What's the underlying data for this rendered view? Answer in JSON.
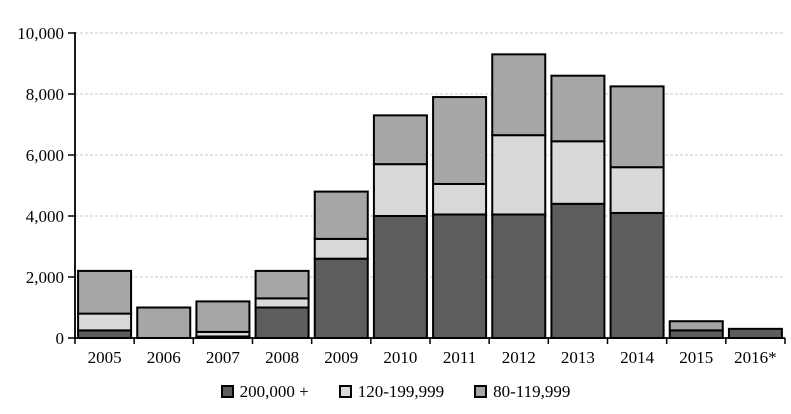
{
  "chart_data": {
    "type": "bar",
    "stacked": true,
    "title": "",
    "xlabel": "",
    "ylabel": "",
    "categories": [
      "2005",
      "2006",
      "2007",
      "2008",
      "2009",
      "2010",
      "2011",
      "2012",
      "2013",
      "2014",
      "2015",
      "2016*"
    ],
    "series": [
      {
        "name": "200,000 +",
        "color": "#5d5d5d",
        "values": [
          250,
          0,
          50,
          1000,
          2600,
          4000,
          4050,
          4050,
          4400,
          4100,
          250,
          300
        ]
      },
      {
        "name": "120-199,999",
        "color": "#d9d9d9",
        "values": [
          550,
          0,
          150,
          300,
          650,
          1700,
          1000,
          2600,
          2050,
          1500,
          0,
          0
        ]
      },
      {
        "name": "80-119,999",
        "color": "#a6a6a6",
        "values": [
          1400,
          1000,
          1000,
          900,
          1550,
          1600,
          2850,
          2650,
          2150,
          2650,
          300,
          0
        ]
      }
    ],
    "totals": [
      2200,
      1000,
      1200,
      2200,
      4800,
      7300,
      7900,
      9300,
      8600,
      8250,
      550,
      300
    ],
    "ylim": [
      0,
      10000
    ],
    "ytick_interval": 2000,
    "ytick_labels": [
      "0",
      "2,000",
      "4,000",
      "6,000",
      "8,000",
      "10,000"
    ],
    "grid": "horizontal-dashed",
    "gridline_color": "#c9c9c9",
    "axis_color": "#000000",
    "bar_border_color": "#000000",
    "legend_position": "bottom"
  }
}
